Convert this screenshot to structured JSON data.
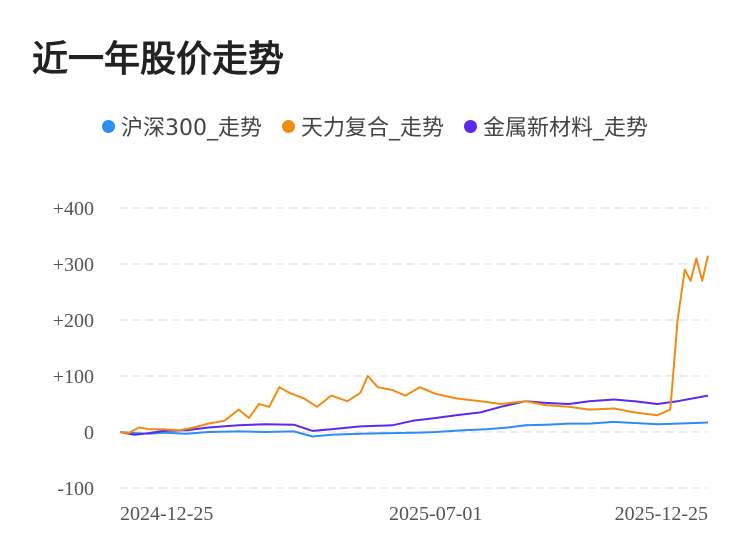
{
  "title": "近一年股价走势",
  "colors": {
    "series_0": "#2c8ef2",
    "series_1": "#f08c12",
    "series_2": "#5a2be8",
    "grid": "#e6e6e6"
  },
  "chart_data": {
    "type": "line",
    "title": "近一年股价走势",
    "xlabel": "",
    "ylabel": "",
    "x_range": [
      "2024-11-25",
      "2026-01-05"
    ],
    "ylim": [
      -100,
      400
    ],
    "y_ticks": [
      400,
      300,
      200,
      100,
      0,
      -100
    ],
    "y_tick_labels": [
      "+400",
      "+300",
      "+200",
      "+100",
      "0",
      "-100"
    ],
    "x_ticks": [
      "2024-12-25",
      "2025-07-01",
      "2025-12-25"
    ],
    "x_tick_labels": [
      "2024-12-25",
      "2025-07-01",
      "2025-12-25"
    ],
    "grid": true,
    "legend_position": "top",
    "series": [
      {
        "name": "沪深300_走势",
        "points": [
          [
            "2024-11-25",
            0
          ],
          [
            "2024-12-05",
            -2
          ],
          [
            "2024-12-15",
            -3
          ],
          [
            "2024-12-25",
            -1
          ],
          [
            "2025-01-10",
            -3
          ],
          [
            "2025-01-25",
            0
          ],
          [
            "2025-02-15",
            1
          ],
          [
            "2025-03-05",
            0
          ],
          [
            "2025-03-25",
            1
          ],
          [
            "2025-04-07",
            -8
          ],
          [
            "2025-04-20",
            -5
          ],
          [
            "2025-05-10",
            -3
          ],
          [
            "2025-06-01",
            -2
          ],
          [
            "2025-06-20",
            -1
          ],
          [
            "2025-07-01",
            0
          ],
          [
            "2025-07-20",
            3
          ],
          [
            "2025-08-05",
            5
          ],
          [
            "2025-08-20",
            8
          ],
          [
            "2025-09-01",
            12
          ],
          [
            "2025-09-15",
            13
          ],
          [
            "2025-10-01",
            15
          ],
          [
            "2025-10-15",
            15
          ],
          [
            "2025-11-01",
            18
          ],
          [
            "2025-11-15",
            16
          ],
          [
            "2025-12-01",
            14
          ],
          [
            "2025-12-15",
            15
          ],
          [
            "2026-01-05",
            17
          ]
        ]
      },
      {
        "name": "天力复合_走势",
        "points": [
          [
            "2024-11-25",
            0
          ],
          [
            "2024-12-01",
            -2
          ],
          [
            "2024-12-08",
            8
          ],
          [
            "2024-12-15",
            5
          ],
          [
            "2024-12-25",
            5
          ],
          [
            "2025-01-05",
            3
          ],
          [
            "2025-01-15",
            8
          ],
          [
            "2025-01-25",
            15
          ],
          [
            "2025-02-05",
            20
          ],
          [
            "2025-02-15",
            40
          ],
          [
            "2025-02-22",
            25
          ],
          [
            "2025-03-01",
            50
          ],
          [
            "2025-03-08",
            45
          ],
          [
            "2025-03-15",
            80
          ],
          [
            "2025-03-22",
            70
          ],
          [
            "2025-04-01",
            60
          ],
          [
            "2025-04-10",
            45
          ],
          [
            "2025-04-20",
            65
          ],
          [
            "2025-05-01",
            55
          ],
          [
            "2025-05-10",
            70
          ],
          [
            "2025-05-15",
            100
          ],
          [
            "2025-05-22",
            80
          ],
          [
            "2025-06-01",
            75
          ],
          [
            "2025-06-10",
            65
          ],
          [
            "2025-06-20",
            80
          ],
          [
            "2025-07-01",
            68
          ],
          [
            "2025-07-15",
            60
          ],
          [
            "2025-08-01",
            55
          ],
          [
            "2025-08-15",
            50
          ],
          [
            "2025-09-01",
            55
          ],
          [
            "2025-09-15",
            48
          ],
          [
            "2025-10-01",
            45
          ],
          [
            "2025-10-15",
            40
          ],
          [
            "2025-11-01",
            42
          ],
          [
            "2025-11-15",
            35
          ],
          [
            "2025-12-01",
            30
          ],
          [
            "2025-12-10",
            40
          ],
          [
            "2025-12-15",
            200
          ],
          [
            "2025-12-20",
            290
          ],
          [
            "2025-12-24",
            270
          ],
          [
            "2025-12-28",
            310
          ],
          [
            "2026-01-01",
            270
          ],
          [
            "2026-01-05",
            315
          ]
        ]
      },
      {
        "name": "金属新材料_走势",
        "points": [
          [
            "2024-11-25",
            0
          ],
          [
            "2024-12-05",
            -5
          ],
          [
            "2024-12-15",
            -2
          ],
          [
            "2024-12-25",
            2
          ],
          [
            "2025-01-10",
            3
          ],
          [
            "2025-01-25",
            8
          ],
          [
            "2025-02-15",
            12
          ],
          [
            "2025-03-05",
            14
          ],
          [
            "2025-03-25",
            13
          ],
          [
            "2025-04-07",
            2
          ],
          [
            "2025-04-20",
            5
          ],
          [
            "2025-05-10",
            10
          ],
          [
            "2025-06-01",
            12
          ],
          [
            "2025-06-15",
            20
          ],
          [
            "2025-07-01",
            25
          ],
          [
            "2025-07-15",
            30
          ],
          [
            "2025-08-01",
            35
          ],
          [
            "2025-08-15",
            45
          ],
          [
            "2025-09-01",
            55
          ],
          [
            "2025-09-15",
            52
          ],
          [
            "2025-10-01",
            50
          ],
          [
            "2025-10-15",
            55
          ],
          [
            "2025-11-01",
            58
          ],
          [
            "2025-11-15",
            55
          ],
          [
            "2025-12-01",
            50
          ],
          [
            "2025-12-15",
            55
          ],
          [
            "2026-01-05",
            65
          ]
        ]
      }
    ]
  }
}
